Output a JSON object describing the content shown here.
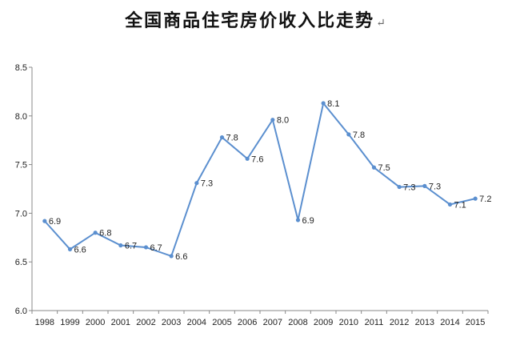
{
  "title": "全国商品住宅房价收入比走势",
  "title_mark": "↵",
  "chart_data": {
    "type": "line",
    "title": "全国商品住宅房价收入比走势",
    "xlabel": "",
    "ylabel": "",
    "x": [
      "1998",
      "1999",
      "2000",
      "2001",
      "2002",
      "2003",
      "2004",
      "2005",
      "2006",
      "2007",
      "2008",
      "2009",
      "2010",
      "2011",
      "2012",
      "2013",
      "2014",
      "2015"
    ],
    "series": [
      {
        "values": [
          6.92,
          6.63,
          6.8,
          6.67,
          6.65,
          6.56,
          7.31,
          7.78,
          7.56,
          7.96,
          6.93,
          8.13,
          7.81,
          7.47,
          7.27,
          7.28,
          7.09,
          7.15
        ],
        "labels": [
          "6.9",
          "6.6",
          "6.8",
          "6.7",
          "6.7",
          "6.6",
          "7.3",
          "7.8",
          "7.6",
          "8.0",
          "6.9",
          "8.1",
          "7.8",
          "7.5",
          "7.3",
          "7.3",
          "7.1",
          "7.2"
        ],
        "color": "#5b8fcf"
      }
    ],
    "ylim": [
      6.0,
      8.5
    ],
    "yticks": [
      "6.0",
      "6.5",
      "7.0",
      "7.5",
      "8.0",
      "8.5"
    ],
    "grid": false,
    "legend": "none"
  }
}
